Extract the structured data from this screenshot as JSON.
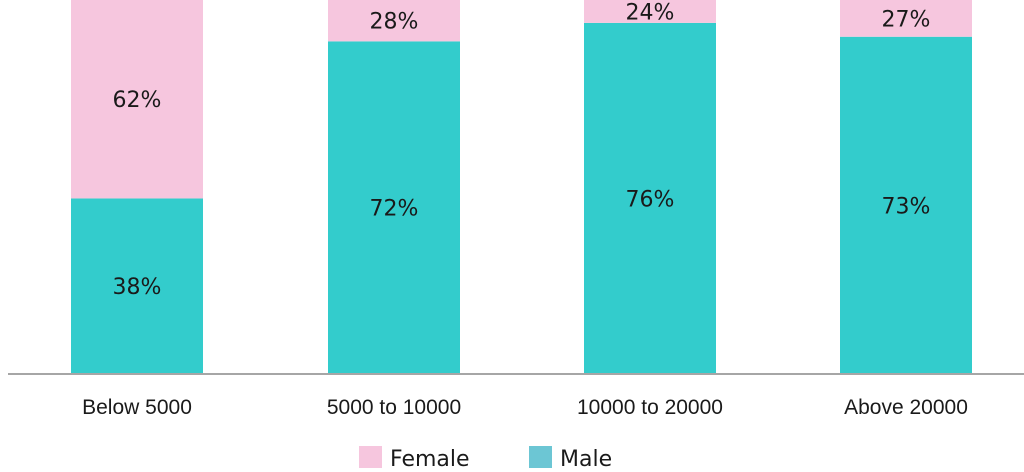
{
  "chart_data": {
    "type": "bar",
    "stacked": true,
    "percent_stacked": true,
    "categories": [
      "Below 5000",
      "5000 to 10000",
      "10000 to 20000",
      "Above 20000"
    ],
    "series": [
      {
        "name": "Male",
        "values": [
          38,
          72,
          76,
          73
        ],
        "labels": [
          "38%",
          "72%",
          "76%",
          "73%"
        ],
        "color": "#33CCCC"
      },
      {
        "name": "Female",
        "values": [
          62,
          28,
          24,
          27
        ],
        "labels": [
          "62%",
          "28%",
          "24%",
          "27%"
        ],
        "color": "#F6C6DE"
      }
    ],
    "ylim": [
      0,
      100
    ],
    "grid": false,
    "legend_position": "bottom",
    "legend": [
      {
        "name": "Female",
        "color": "#F6C6DE"
      },
      {
        "name": "Male",
        "color": "#6CC6D4"
      }
    ],
    "axis_color": "#A6A6A6"
  }
}
